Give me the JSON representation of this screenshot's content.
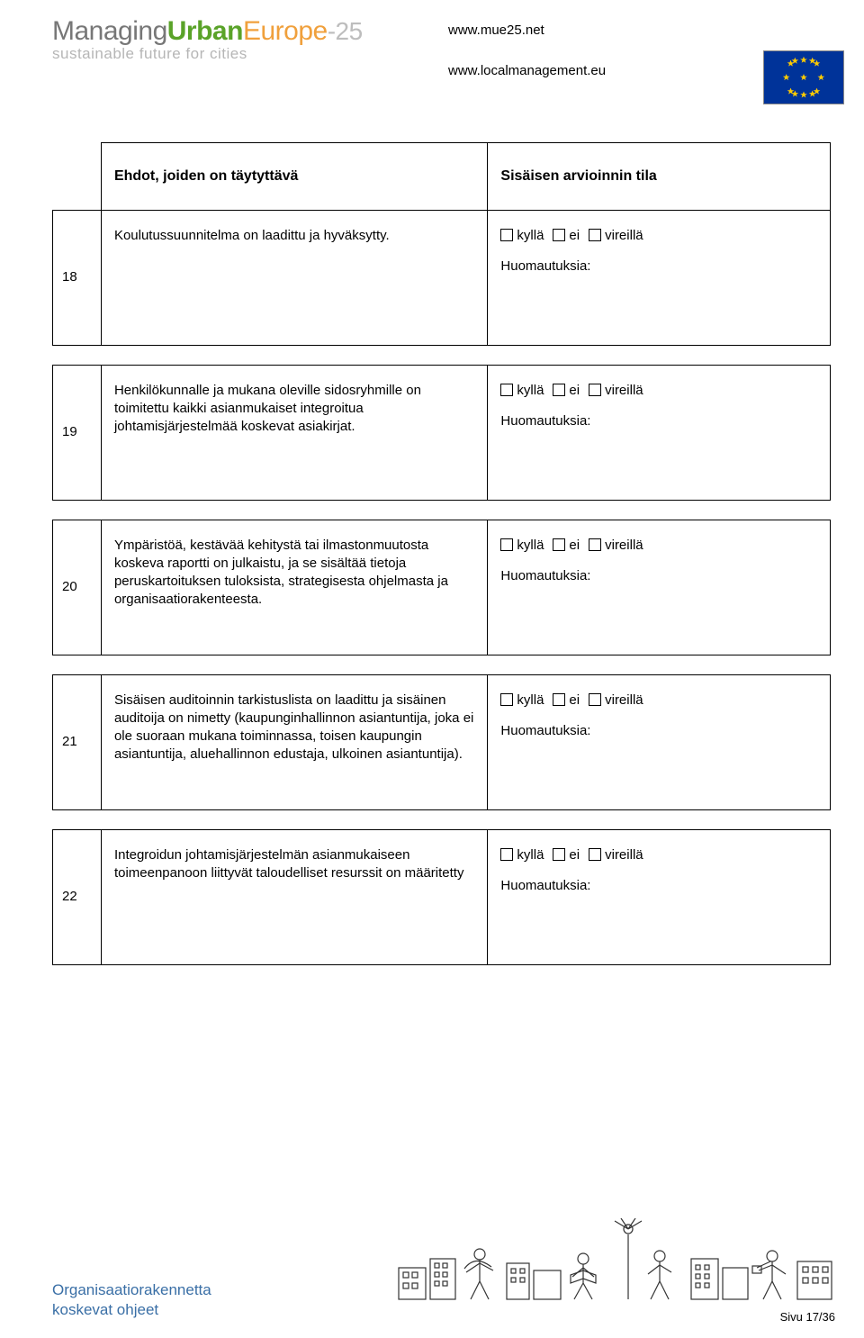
{
  "header": {
    "logo": {
      "word1": "Managing",
      "word2": "Urban",
      "word3": "Europe",
      "suffix": "-25",
      "tagline": "sustainable future for cities"
    },
    "urls": [
      "www.mue25.net",
      "www.localmanagement.eu"
    ],
    "flag_bg": "#003399",
    "flag_star": "#ffcc00"
  },
  "table": {
    "header_conditions": "Ehdot, joiden on täytyttävä",
    "header_status": "Sisäisen arvioinnin tila",
    "check_labels": {
      "yes": "kyllä",
      "no": "ei",
      "pending": "vireillä"
    },
    "notes_label": "Huomautuksia:",
    "rows": [
      {
        "num": "18",
        "cond": "Koulutussuunnitelma on laadittu ja hyväksytty."
      },
      {
        "num": "19",
        "cond": "Henkilökunnalle ja mukana oleville sidosryhmille on toimitettu kaikki asianmukaiset integroitua johtamisjärjestelmää koskevat asiakirjat."
      },
      {
        "num": "20",
        "cond": "Ympäristöä, kestävää kehitystä tai ilmastonmuutosta koskeva raportti on julkaistu, ja se sisältää tietoja peruskartoituksen tuloksista, strategisesta ohjelmasta ja organisaatiorakenteesta."
      },
      {
        "num": "21",
        "cond": "Sisäisen auditoinnin tarkistuslista on laadittu ja sisäinen auditoija on nimetty (kaupunginhallinnon asiantuntija, joka ei ole suoraan mukana toiminnassa, toisen kaupungin asiantuntija, aluehallinnon edustaja, ulkoinen asiantuntija)."
      },
      {
        "num": "22",
        "cond": "Integroidun johtamisjärjestelmän asianmukaiseen toimeenpanoon liittyvät taloudelliset resurssit on määritetty"
      }
    ]
  },
  "footer": {
    "title_line1": "Organisaatiorakennetta",
    "title_line2": "koskevat ohjeet",
    "page_label": "Sivu 17/36",
    "title_color": "#3a6fa6"
  }
}
